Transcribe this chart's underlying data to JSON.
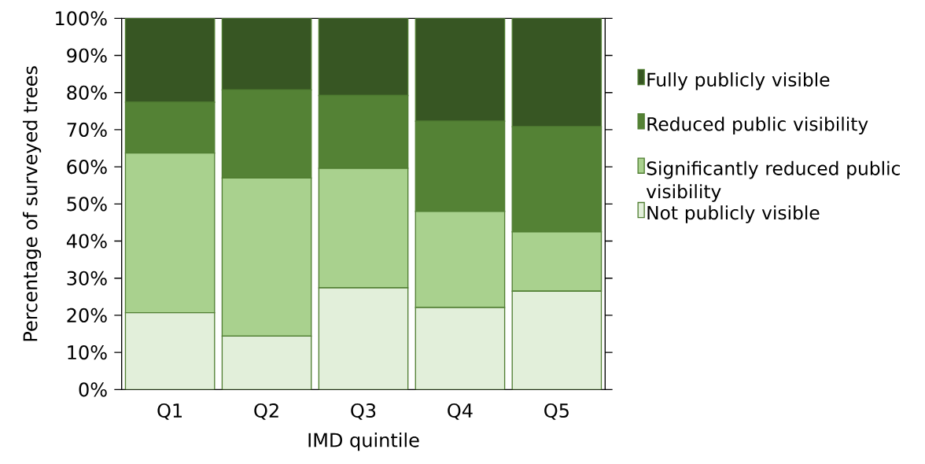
{
  "chart_data": {
    "type": "bar",
    "stacked": true,
    "xlabel": "IMD quintile",
    "ylabel": "Percentage of surveyed trees",
    "categories": [
      "Q1",
      "Q2",
      "Q3",
      "Q4",
      "Q5"
    ],
    "series": [
      {
        "name": "Not publicly visible",
        "color": "#e2efda",
        "values": [
          20.7,
          14.4,
          27.4,
          22.1,
          26.5
        ]
      },
      {
        "name": "Significantly reduced public visibility",
        "color": "#a9d18e",
        "values": [
          43.0,
          42.6,
          32.2,
          25.9,
          16.0
        ]
      },
      {
        "name": "Reduced public visibility",
        "color": "#548235",
        "values": [
          13.7,
          23.7,
          19.6,
          24.3,
          28.3
        ]
      },
      {
        "name": "Fully publicly visible",
        "color": "#375623",
        "values": [
          22.6,
          19.3,
          20.8,
          27.7,
          29.2
        ]
      }
    ],
    "ylim": [
      0,
      100
    ],
    "yticks": [
      {
        "value": 0,
        "label": "0%"
      },
      {
        "value": 10,
        "label": "10%"
      },
      {
        "value": 20,
        "label": "20%"
      },
      {
        "value": 30,
        "label": "30%"
      },
      {
        "value": 40,
        "label": "40%"
      },
      {
        "value": 50,
        "label": "50%"
      },
      {
        "value": 60,
        "label": "60%"
      },
      {
        "value": 70,
        "label": "70%"
      },
      {
        "value": 80,
        "label": "80%"
      },
      {
        "value": 90,
        "label": "90%"
      },
      {
        "value": 100,
        "label": "100%"
      }
    ],
    "legend": "right",
    "grid": false
  }
}
